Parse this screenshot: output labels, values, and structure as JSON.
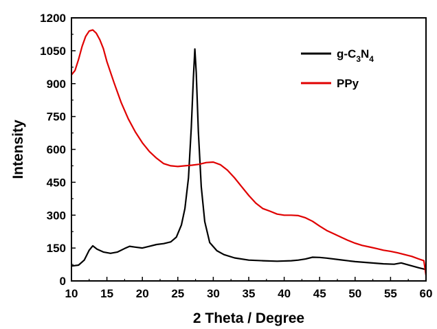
{
  "chart_data": {
    "type": "line",
    "title": "",
    "xlabel": "2 Theta / Degree",
    "ylabel": "Intensity",
    "xlim": [
      10,
      60
    ],
    "ylim": [
      0,
      1200
    ],
    "xticks": [
      "10",
      "15",
      "20",
      "25",
      "30",
      "35",
      "40",
      "45",
      "50",
      "55",
      "60"
    ],
    "yticks": [
      "0",
      "150",
      "300",
      "450",
      "600",
      "750",
      "900",
      "1050",
      "1200"
    ],
    "grid": false,
    "legend_position": "top-right",
    "series": [
      {
        "name": "g-C3N4",
        "legend_main": "g-C",
        "legend_sub1": "3",
        "legend_mid": "N",
        "legend_sub2": "4",
        "color": "#000000",
        "x": [
          10,
          11,
          11.8,
          12.5,
          13,
          13.6,
          14.5,
          15.5,
          16.5,
          17.5,
          18.2,
          19,
          20,
          21,
          22,
          23,
          24,
          24.8,
          25.5,
          26,
          26.5,
          26.9,
          27.2,
          27.4,
          27.6,
          27.9,
          28.3,
          28.8,
          29.5,
          30.5,
          31.5,
          33,
          35,
          37,
          39,
          41,
          42,
          43,
          44,
          45,
          46,
          48,
          50,
          52,
          54,
          55.5,
          56.5,
          57.5,
          59,
          60
        ],
        "values": [
          68,
          72,
          95,
          140,
          160,
          145,
          132,
          126,
          132,
          148,
          158,
          154,
          150,
          158,
          166,
          170,
          178,
          200,
          255,
          330,
          470,
          700,
          930,
          1058,
          950,
          680,
          430,
          270,
          175,
          138,
          120,
          105,
          95,
          92,
          90,
          92,
          95,
          100,
          108,
          107,
          104,
          96,
          88,
          83,
          78,
          76,
          82,
          73,
          60,
          52
        ]
      },
      {
        "name": "PPy",
        "color": "#e00000",
        "x": [
          10,
          10.5,
          11,
          11.5,
          12,
          12.5,
          13,
          13.5,
          14,
          14.5,
          15,
          16,
          17,
          18,
          19,
          20,
          21,
          22,
          23,
          24,
          25,
          26,
          27,
          28,
          29,
          30,
          31,
          32,
          33,
          34,
          35,
          36,
          37,
          38,
          39,
          40,
          41,
          42,
          43,
          44,
          45,
          46,
          47,
          48,
          49,
          50,
          51,
          52,
          53,
          54,
          55,
          56,
          57,
          58,
          59,
          59.7,
          60
        ],
        "values": [
          940,
          960,
          1010,
          1070,
          1115,
          1140,
          1145,
          1130,
          1100,
          1060,
          1000,
          905,
          815,
          740,
          680,
          630,
          590,
          560,
          535,
          525,
          522,
          525,
          528,
          532,
          540,
          542,
          530,
          505,
          470,
          430,
          390,
          355,
          330,
          318,
          305,
          300,
          300,
          298,
          288,
          272,
          250,
          230,
          215,
          200,
          185,
          172,
          162,
          155,
          148,
          140,
          135,
          128,
          120,
          112,
          100,
          92,
          25
        ]
      }
    ]
  }
}
